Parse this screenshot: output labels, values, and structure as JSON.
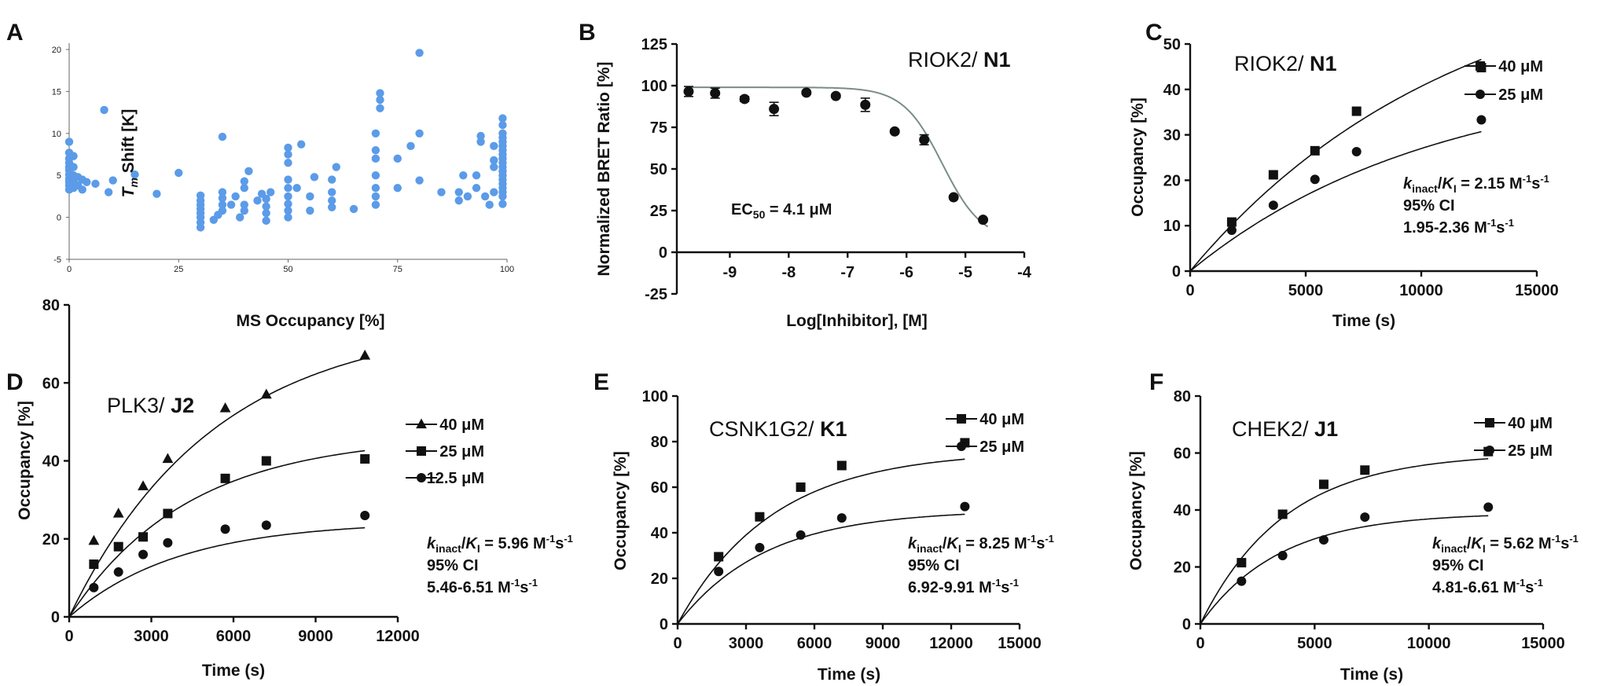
{
  "chart_data": [
    {
      "panel": "A",
      "type": "scatter",
      "xlabel": "MS Occupancy [%]",
      "ylabel_main": "T",
      "ylabel_sub": "m",
      "ylabel_rest": " Shift [K]",
      "xlim": [
        0,
        100
      ],
      "ylim": [
        -5,
        20
      ],
      "xticks": [
        0,
        25,
        50,
        75,
        100
      ],
      "yticks": [
        -5,
        0,
        5,
        10,
        15,
        20
      ],
      "color": "#5b9be8",
      "series": [
        {
          "points": [
            [
              0,
              3.3
            ],
            [
              0,
              3.8
            ],
            [
              0,
              4.2
            ],
            [
              0,
              4.6
            ],
            [
              0,
              5.1
            ],
            [
              0,
              5.6
            ],
            [
              0,
              6.0
            ],
            [
              0,
              6.5
            ],
            [
              0,
              7.0
            ],
            [
              0,
              7.7
            ],
            [
              0,
              9.0
            ],
            [
              1,
              3.5
            ],
            [
              1,
              4.2
            ],
            [
              1,
              5.0
            ],
            [
              1,
              6.0
            ],
            [
              1,
              7.3
            ],
            [
              2,
              3.8
            ],
            [
              2,
              4.8
            ],
            [
              3,
              3.3
            ],
            [
              3,
              4.5
            ],
            [
              4,
              4.2
            ],
            [
              6,
              4.0
            ],
            [
              8,
              12.8
            ],
            [
              9,
              3.0
            ],
            [
              10,
              4.4
            ],
            [
              15,
              5.1
            ],
            [
              20,
              2.8
            ],
            [
              25,
              5.3
            ],
            [
              30,
              -1.2
            ],
            [
              30,
              -0.6
            ],
            [
              30,
              0
            ],
            [
              30,
              0.5
            ],
            [
              30,
              1.0
            ],
            [
              30,
              1.5
            ],
            [
              30,
              2.0
            ],
            [
              30,
              2.6
            ],
            [
              33,
              -0.3
            ],
            [
              34,
              0.3
            ],
            [
              35,
              0.8
            ],
            [
              35,
              1.5
            ],
            [
              35,
              2.3
            ],
            [
              35,
              3.0
            ],
            [
              35,
              9.6
            ],
            [
              37,
              1.5
            ],
            [
              38,
              2.5
            ],
            [
              39,
              0
            ],
            [
              40,
              0.8
            ],
            [
              40,
              1.5
            ],
            [
              40,
              3.5
            ],
            [
              40,
              4.3
            ],
            [
              41,
              5.5
            ],
            [
              43,
              2.0
            ],
            [
              44,
              2.8
            ],
            [
              45,
              -0.4
            ],
            [
              45,
              0.5
            ],
            [
              45,
              1.3
            ],
            [
              45,
              2.2
            ],
            [
              46,
              3.0
            ],
            [
              50,
              0
            ],
            [
              50,
              0.8
            ],
            [
              50,
              1.6
            ],
            [
              50,
              2.5
            ],
            [
              50,
              3.5
            ],
            [
              50,
              4.5
            ],
            [
              50,
              6.5
            ],
            [
              50,
              7.5
            ],
            [
              50,
              8.3
            ],
            [
              52,
              3.5
            ],
            [
              53,
              8.7
            ],
            [
              55,
              0.8
            ],
            [
              55,
              2.5
            ],
            [
              56,
              4.8
            ],
            [
              60,
              1.2
            ],
            [
              60,
              2.0
            ],
            [
              60,
              3.0
            ],
            [
              60,
              4.5
            ],
            [
              61,
              6.0
            ],
            [
              65,
              1.0
            ],
            [
              70,
              1.5
            ],
            [
              70,
              2.5
            ],
            [
              70,
              3.5
            ],
            [
              70,
              5.0
            ],
            [
              70,
              7.0
            ],
            [
              70,
              8.0
            ],
            [
              70,
              10.0
            ],
            [
              71,
              13.0
            ],
            [
              71,
              14.0
            ],
            [
              71,
              14.8
            ],
            [
              75,
              3.5
            ],
            [
              75,
              7.0
            ],
            [
              78,
              8.5
            ],
            [
              80,
              4.4
            ],
            [
              80,
              10.0
            ],
            [
              80,
              19.6
            ],
            [
              85,
              3.0
            ],
            [
              89,
              2.0
            ],
            [
              89,
              3.0
            ],
            [
              90,
              5.0
            ],
            [
              91,
              2.5
            ],
            [
              93,
              3.5
            ],
            [
              93,
              5.0
            ],
            [
              94,
              9.0
            ],
            [
              94,
              9.7
            ],
            [
              95,
              2.5
            ],
            [
              96,
              1.5
            ],
            [
              97,
              3.0
            ],
            [
              97,
              6.0
            ],
            [
              97,
              6.8
            ],
            [
              97,
              8.5
            ],
            [
              99,
              1.6
            ],
            [
              99,
              2.5
            ],
            [
              99,
              3.0
            ],
            [
              99,
              3.5
            ],
            [
              99,
              4.0
            ],
            [
              99,
              4.5
            ],
            [
              99,
              5.0
            ],
            [
              99,
              5.5
            ],
            [
              99,
              6.0
            ],
            [
              99,
              6.5
            ],
            [
              99,
              7.0
            ],
            [
              99,
              7.5
            ],
            [
              99,
              8.0
            ],
            [
              99,
              8.5
            ],
            [
              99,
              9.0
            ],
            [
              99,
              9.5
            ],
            [
              99,
              10.0
            ],
            [
              99,
              11.0
            ],
            [
              99,
              11.8
            ]
          ]
        }
      ]
    },
    {
      "panel": "B",
      "type": "line",
      "title_plain": "RIOK2/ ",
      "title_bold": "N1",
      "xlabel": "Log[Inhibitor], [M]",
      "ylabel": "Normalized BRET Ratio [%]",
      "xlim": [
        -9.9,
        -4
      ],
      "ylim": [
        -25,
        125
      ],
      "xticks": [
        -9,
        -8,
        -7,
        -6,
        -5,
        -4
      ],
      "yticks": [
        -25,
        0,
        25,
        50,
        75,
        100,
        125
      ],
      "annotation_prefix": "EC",
      "annotation_sub": "50",
      "annotation_value": " = 4.1 μM",
      "points": [
        [
          -9.7,
          96.5
        ],
        [
          -9.25,
          95.5
        ],
        [
          -8.75,
          92.0
        ],
        [
          -8.25,
          86.0
        ],
        [
          -7.7,
          95.8
        ],
        [
          -7.2,
          93.8
        ],
        [
          -6.7,
          88.5
        ],
        [
          -6.2,
          72.5
        ],
        [
          -5.7,
          67.5
        ],
        [
          -5.2,
          33.0
        ],
        [
          -4.7,
          19.5
        ]
      ],
      "errors": [
        3,
        3,
        1.5,
        4,
        1,
        1,
        4,
        1,
        3,
        1,
        1
      ],
      "fit": {
        "top": 99,
        "bottom": 7,
        "logEC50": -5.39,
        "hill": 1.3
      }
    },
    {
      "panel": "C",
      "type": "scatter",
      "title_plain": "RIOK2/ ",
      "title_bold": "N1",
      "xlabel": "Time (s)",
      "ylabel": "Occupancy [%]",
      "xlim": [
        0,
        15000
      ],
      "ylim": [
        0,
        50
      ],
      "xticks": [
        0,
        5000,
        10000,
        15000
      ],
      "yticks": [
        0,
        10,
        20,
        30,
        40,
        50
      ],
      "annotation": [
        "2.15 M",
        "95% CI",
        "1.95-2.36 M"
      ],
      "series": [
        {
          "name": "40 μM",
          "marker": "square",
          "points": [
            [
              1800,
              10.8
            ],
            [
              3600,
              21.2
            ],
            [
              5400,
              26.5
            ],
            [
              7200,
              35.2
            ],
            [
              12600,
              44.8
            ]
          ],
          "fit": {
            "a": 70,
            "k": 8.7e-05,
            "xmax": 12600
          }
        },
        {
          "name": "25 μM",
          "marker": "circle",
          "points": [
            [
              1800,
              9.0
            ],
            [
              3600,
              14.5
            ],
            [
              5400,
              20.2
            ],
            [
              7200,
              26.3
            ],
            [
              12600,
              33.3
            ]
          ],
          "fit": {
            "a": 44,
            "k": 9.5e-05,
            "xmax": 12600
          }
        }
      ]
    },
    {
      "panel": "D",
      "type": "scatter",
      "title_plain": "PLK3/ ",
      "title_bold": "J2",
      "xlabel": "Time (s)",
      "ylabel": "Occupancy [%]",
      "xlim": [
        0,
        12000
      ],
      "ylim": [
        0,
        80
      ],
      "xticks": [
        0,
        3000,
        6000,
        9000,
        12000
      ],
      "yticks": [
        0,
        20,
        40,
        60,
        80
      ],
      "annotation": [
        "5.96 M",
        "95% CI",
        "5.46-6.51 M"
      ],
      "series": [
        {
          "name": "40 μM",
          "marker": "triangle",
          "points": [
            [
              900,
              19.5
            ],
            [
              1800,
              26.5
            ],
            [
              2700,
              33.5
            ],
            [
              3600,
              40.5
            ],
            [
              5700,
              53.5
            ],
            [
              7200,
              57.0
            ],
            [
              10800,
              67.0
            ]
          ],
          "fit": {
            "a": 76,
            "k": 0.00019,
            "xmax": 10800
          }
        },
        {
          "name": "25 μM",
          "marker": "square",
          "points": [
            [
              900,
              13.5
            ],
            [
              1800,
              18.0
            ],
            [
              2700,
              20.5
            ],
            [
              3600,
              26.5
            ],
            [
              5700,
              35.5
            ],
            [
              7200,
              40.0
            ],
            [
              10800,
              40.5
            ]
          ],
          "fit": {
            "a": 46.5,
            "k": 0.00023,
            "xmax": 10800
          }
        },
        {
          "name": "12.5 μM",
          "marker": "circle",
          "points": [
            [
              900,
              7.5
            ],
            [
              1800,
              11.5
            ],
            [
              2700,
              16.0
            ],
            [
              3600,
              19.0
            ],
            [
              5700,
              22.5
            ],
            [
              7200,
              23.5
            ],
            [
              10800,
              26.0
            ]
          ],
          "fit": {
            "a": 24.5,
            "k": 0.00025,
            "xmax": 10800
          }
        }
      ]
    },
    {
      "panel": "E",
      "type": "scatter",
      "title_plain": "CSNK1G2/ ",
      "title_bold": "K1",
      "xlabel": "Time (s)",
      "ylabel": "Occupancy [%]",
      "xlim": [
        0,
        15000
      ],
      "ylim": [
        0,
        100
      ],
      "xticks": [
        0,
        3000,
        6000,
        9000,
        12000,
        15000
      ],
      "yticks": [
        0,
        20,
        40,
        60,
        80,
        100
      ],
      "annotation": [
        "8.25 M",
        "95% CI",
        "6.92-9.91 M"
      ],
      "series": [
        {
          "name": "40 μM",
          "marker": "square",
          "points": [
            [
              1800,
              29.5
            ],
            [
              3600,
              47.0
            ],
            [
              5400,
              60.0
            ],
            [
              7200,
              69.5
            ],
            [
              12600,
              79.5
            ]
          ],
          "fit": {
            "a": 76,
            "k": 0.00024,
            "xmax": 12600
          }
        },
        {
          "name": "25 μM",
          "marker": "circle",
          "points": [
            [
              1800,
              23.0
            ],
            [
              3600,
              33.5
            ],
            [
              5400,
              39.0
            ],
            [
              7200,
              46.5
            ],
            [
              12600,
              51.5
            ]
          ],
          "fit": {
            "a": 50,
            "k": 0.00026,
            "xmax": 12600
          }
        }
      ]
    },
    {
      "panel": "F",
      "type": "scatter",
      "title_plain": "CHEK2/ ",
      "title_bold": "J1",
      "xlabel": "Time (s)",
      "ylabel": "Occupancy [%]",
      "xlim": [
        0,
        15000
      ],
      "ylim": [
        0,
        80
      ],
      "xticks": [
        0,
        5000,
        10000,
        15000
      ],
      "yticks": [
        0,
        20,
        40,
        60,
        80
      ],
      "annotation": [
        "5.62 M",
        "95% CI",
        "4.81-6.61 M"
      ],
      "series": [
        {
          "name": "40 μM",
          "marker": "square",
          "points": [
            [
              1800,
              21.5
            ],
            [
              3600,
              38.5
            ],
            [
              5400,
              49.0
            ],
            [
              7200,
              54.0
            ],
            [
              12600,
              60.5
            ]
          ],
          "fit": {
            "a": 60,
            "k": 0.00027,
            "xmax": 12600
          }
        },
        {
          "name": "25 μM",
          "marker": "circle",
          "points": [
            [
              1800,
              15.0
            ],
            [
              3600,
              24.0
            ],
            [
              5400,
              29.5
            ],
            [
              7200,
              37.5
            ],
            [
              12600,
              41.0
            ]
          ],
          "fit": {
            "a": 39,
            "k": 0.00029,
            "xmax": 12600
          }
        }
      ]
    }
  ]
}
